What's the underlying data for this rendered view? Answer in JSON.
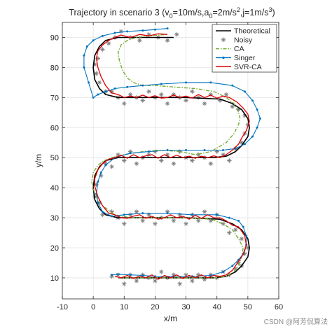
{
  "chart_data": {
    "type": "line",
    "title": {
      "main": "Trajectory in scenario 3  (v",
      "parts": [
        {
          "text": "Trajectory in scenario 3  (v",
          "shift": "base"
        },
        {
          "text": "0",
          "shift": "sub"
        },
        {
          "text": "=10m/s,a",
          "shift": "base"
        },
        {
          "text": "0",
          "shift": "sub"
        },
        {
          "text": "=2m/s",
          "shift": "base"
        },
        {
          "text": "2",
          "shift": "sup"
        },
        {
          "text": ",j=1m/s",
          "shift": "base"
        },
        {
          "text": "3",
          "shift": "sup"
        },
        {
          "text": ")",
          "shift": "base"
        }
      ]
    },
    "xlabel": "x/m",
    "ylabel": "y/m",
    "xlim": [
      -10,
      60
    ],
    "ylim": [
      3,
      95
    ],
    "xticks": [
      -10,
      0,
      10,
      20,
      30,
      40,
      50,
      60
    ],
    "yticks": [
      10,
      20,
      30,
      40,
      50,
      60,
      70,
      80,
      90
    ],
    "grid": true,
    "legend": {
      "position": "top-right",
      "entries": [
        {
          "label": "Theoretical",
          "series": "theoretical"
        },
        {
          "label": "Noisy",
          "series": "noisy"
        },
        {
          "label": "CA",
          "series": "ca"
        },
        {
          "label": "Singer",
          "series": "singer"
        },
        {
          "label": "SVR-CA",
          "series": "svr"
        }
      ]
    },
    "series": [
      {
        "id": "theoretical",
        "name": "Theoretical",
        "color": "#000000",
        "style": "solid",
        "x": [
          8,
          20,
          30,
          39,
          43,
          46,
          48,
          50,
          50.5,
          50,
          48,
          45,
          41,
          30,
          20,
          12,
          8,
          4,
          2,
          0.5,
          0,
          0.5,
          2,
          4,
          8,
          12,
          20,
          30,
          39,
          43,
          46,
          48,
          50,
          50.5,
          50,
          48,
          45,
          41,
          30,
          20,
          12,
          8,
          4,
          2,
          0.5,
          0,
          0.5,
          2,
          4,
          8,
          14,
          20,
          26
        ],
        "y": [
          10,
          10,
          10,
          10,
          10.5,
          12,
          14,
          17,
          20,
          23,
          26,
          28,
          29.5,
          30,
          30,
          30,
          30,
          31,
          33,
          36,
          40,
          44,
          47,
          49,
          50,
          50,
          50,
          50,
          50,
          50.5,
          52,
          54,
          57,
          60,
          63,
          66,
          68,
          69.5,
          70,
          70,
          70,
          70,
          71,
          73,
          76,
          80,
          84,
          87,
          89,
          90,
          90,
          90,
          90
        ]
      },
      {
        "id": "noisy",
        "name": "Noisy",
        "color": "#7f7f7f",
        "style": "marker",
        "x": [
          6,
          8,
          10,
          12,
          14,
          16,
          18,
          20,
          22,
          24,
          26,
          28,
          30,
          32,
          34,
          36,
          38,
          40,
          42,
          44,
          46,
          47,
          48,
          49,
          50,
          48,
          46,
          44,
          42,
          40,
          38,
          36,
          34,
          32,
          30,
          28,
          26,
          24,
          22,
          20,
          18,
          16,
          14,
          12,
          10,
          8,
          6,
          3,
          2,
          0.5,
          1,
          2.5,
          4,
          6,
          8,
          10,
          12,
          14,
          16,
          18,
          20,
          22,
          24,
          26,
          28,
          30,
          32,
          34,
          36,
          38,
          40,
          42,
          44,
          46,
          48,
          49,
          50,
          49,
          47,
          45,
          43,
          41,
          38,
          36,
          34,
          32,
          30,
          28,
          26,
          24,
          22,
          20,
          18,
          16,
          14,
          12,
          10,
          8,
          6,
          4,
          2,
          1,
          0.5,
          1.5,
          3,
          5,
          7,
          9,
          12,
          15,
          18,
          21,
          24,
          27
        ],
        "y": [
          10.5,
          11,
          8,
          11,
          9,
          11,
          10,
          9,
          12,
          10,
          11,
          8,
          11,
          9,
          11,
          9.5,
          11,
          10,
          12,
          11,
          13,
          15,
          14,
          18,
          20,
          23,
          26,
          25,
          28,
          31,
          29,
          32,
          29,
          31,
          28,
          31,
          29,
          32,
          30,
          28,
          31,
          29,
          32,
          31,
          28,
          30,
          32,
          31,
          35,
          37,
          41,
          44,
          48,
          47,
          51,
          49,
          52,
          48,
          50,
          51,
          52,
          49,
          51,
          48,
          52,
          50,
          49,
          51,
          50,
          48,
          52,
          51,
          49,
          53,
          55,
          58,
          61,
          64,
          66,
          67,
          71,
          69,
          71,
          68,
          70,
          72,
          69,
          70,
          71,
          68,
          71,
          70,
          72,
          69,
          70,
          71,
          68,
          70,
          72,
          72,
          75,
          78,
          81,
          83,
          86,
          88,
          90,
          92,
          90,
          89,
          91,
          90,
          89,
          91
        ]
      },
      {
        "id": "ca",
        "name": "CA",
        "color": "#77ac30",
        "style": "dashdot",
        "x": [
          8,
          20,
          30,
          39,
          43,
          45.5,
          47,
          48,
          48.5,
          47,
          45,
          42,
          38,
          30,
          20,
          12,
          7,
          3,
          0.5,
          -0.5,
          0,
          1.5,
          3.5,
          6,
          10,
          16,
          22,
          28,
          33,
          38,
          43,
          45.5,
          47,
          47.5,
          47,
          45.5,
          43,
          39,
          33,
          26,
          20,
          16,
          13,
          11,
          9.5,
          8.5,
          8,
          9,
          11,
          14,
          18,
          24
        ],
        "y": [
          10,
          10,
          10,
          10,
          10.5,
          12,
          14,
          17,
          20,
          23,
          26,
          28,
          29.5,
          30,
          30,
          30,
          31,
          34,
          38,
          42,
          45,
          47.5,
          49,
          50,
          51,
          52,
          52.5,
          52,
          51,
          52,
          55,
          58,
          61,
          63,
          65,
          68,
          70,
          72,
          73,
          73.5,
          74,
          74,
          75,
          76.5,
          79,
          82,
          85,
          87.5,
          89,
          90,
          90.5,
          91
        ]
      },
      {
        "id": "singer",
        "name": "Singer",
        "color": "#0072bd",
        "style": "solid-marker",
        "x": [
          6,
          8,
          12,
          16,
          20,
          26,
          32,
          38,
          42,
          45,
          47,
          48.5,
          49.5,
          49.5,
          48.5,
          47,
          44,
          40,
          32,
          24,
          16,
          10,
          6,
          3,
          1.5,
          1,
          1.5,
          2.5,
          4,
          7,
          12,
          18,
          24,
          30,
          36,
          42,
          46,
          49,
          51.5,
          53,
          54,
          53,
          51.5,
          49,
          45,
          38,
          30,
          22,
          16,
          11,
          7,
          4,
          1.5,
          0,
          -1.5,
          -3,
          -3,
          -2,
          0,
          3,
          7,
          11,
          16,
          20,
          24
        ],
        "y": [
          11,
          11.2,
          11,
          10.8,
          10.5,
          10.5,
          10.5,
          10.8,
          12,
          14,
          16,
          18,
          21,
          24,
          27,
          29,
          30,
          31,
          31,
          31.5,
          31.5,
          31,
          30.5,
          32,
          35,
          38,
          42,
          45,
          47.5,
          50,
          51.5,
          52,
          52.5,
          52.5,
          52.5,
          52.5,
          53,
          54.5,
          57,
          60,
          63,
          66,
          69,
          72,
          74,
          75,
          75,
          74.5,
          74,
          73.5,
          73,
          72,
          71,
          70,
          75,
          80,
          84,
          87,
          89,
          90.5,
          91.5,
          92,
          92.3,
          92.6,
          93
        ]
      },
      {
        "id": "svr",
        "name": "SVR-CA",
        "color": "#e00000",
        "style": "solid",
        "x": [
          7,
          9,
          11,
          13,
          15,
          17,
          19,
          21,
          23,
          25,
          27,
          29,
          31,
          33,
          35,
          37,
          39,
          41,
          43,
          45,
          46,
          47,
          48,
          49,
          49.5,
          49,
          47,
          45,
          43,
          41,
          39,
          37,
          35,
          33,
          31,
          29,
          27,
          25,
          23,
          21,
          19,
          17,
          15,
          13,
          11,
          9,
          7,
          5,
          3,
          1.5,
          0.5,
          0.5,
          1.5,
          3,
          5,
          7,
          9,
          11,
          13,
          15,
          17,
          19,
          21,
          23,
          25,
          27,
          29,
          31,
          33,
          35,
          37,
          39,
          41,
          43,
          45,
          47,
          48,
          49.5,
          50.5,
          50,
          48.5,
          46.5,
          44,
          42,
          40,
          38,
          36,
          34,
          32,
          30,
          28,
          26,
          24,
          22,
          20,
          18,
          16,
          14,
          12,
          10,
          8,
          6,
          4,
          2.5,
          1.5,
          1,
          1.5,
          3,
          5,
          7,
          9,
          12,
          15,
          18,
          21,
          24
        ],
        "y": [
          10.5,
          10,
          10.8,
          9.8,
          10.6,
          10,
          11,
          9.5,
          10.8,
          10,
          11,
          9.8,
          10.8,
          10,
          11,
          10,
          10.8,
          10.5,
          11,
          12.5,
          14,
          15.5,
          17,
          19,
          21,
          24,
          27,
          27.5,
          29,
          30,
          30,
          31,
          29.8,
          30.8,
          29.5,
          30.5,
          30,
          31,
          30,
          29.5,
          30.5,
          29.8,
          31,
          30.5,
          29.8,
          30,
          31,
          31.5,
          34,
          37,
          40.5,
          43,
          46,
          48,
          49.5,
          50,
          50.8,
          49.8,
          51,
          50,
          50.6,
          51,
          49.8,
          51,
          50,
          50.8,
          50,
          50.5,
          49.8,
          50.5,
          50,
          50.6,
          50,
          51,
          52.5,
          54.5,
          56.5,
          59,
          62,
          64.5,
          66.5,
          68.5,
          70,
          70.5,
          69.8,
          70.8,
          70,
          71,
          69.8,
          70.5,
          70,
          70.8,
          70,
          69.8,
          70.6,
          70,
          70.8,
          70,
          70.5,
          70,
          71,
          71.5,
          74,
          77,
          80,
          83,
          85.5,
          87.5,
          89,
          90,
          90.8,
          90,
          91,
          90.5,
          91.2,
          91
        ]
      }
    ]
  },
  "watermark": "CSDN @阿芳侃算法"
}
